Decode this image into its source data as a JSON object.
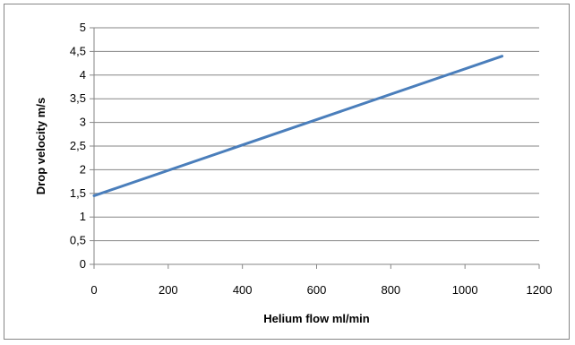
{
  "chart_data": {
    "type": "line",
    "title": "",
    "xlabel": "Helium flow ml/min",
    "ylabel": "Drop velocity m/s",
    "xlim": [
      0,
      1200
    ],
    "ylim": [
      0,
      5
    ],
    "x_ticks": [
      "0",
      "200",
      "400",
      "600",
      "800",
      "1000",
      "1200"
    ],
    "y_ticks": [
      "0",
      "0,5",
      "1",
      "1,5",
      "2",
      "2,5",
      "3",
      "3,5",
      "4",
      "4,5",
      "5"
    ],
    "grid": "horizontal",
    "legend": "none",
    "series": [
      {
        "x": [
          0,
          1100
        ],
        "y": [
          1.45,
          4.4
        ],
        "color": "#4a7ebb"
      }
    ]
  }
}
